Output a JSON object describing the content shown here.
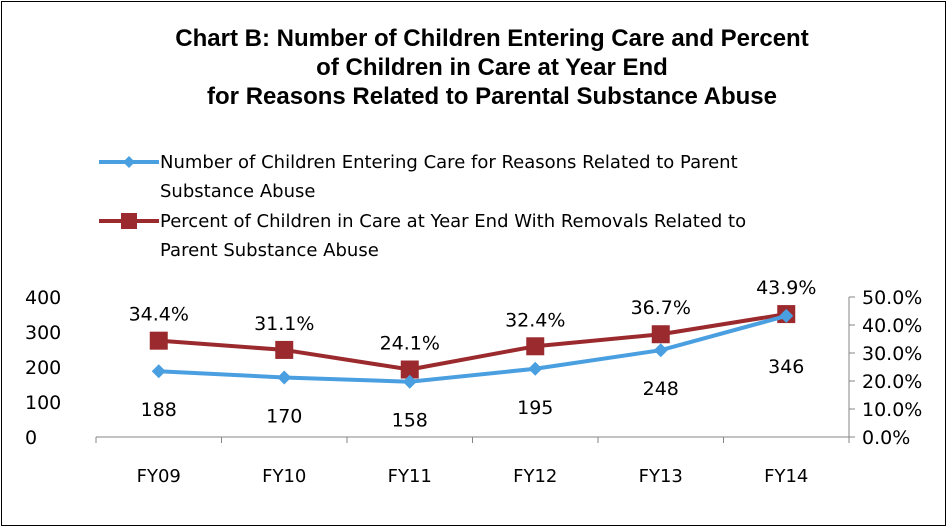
{
  "title_lines": [
    "Chart B: Number of Children Entering Care and Percent",
    "of Children in Care at Year End",
    "for Reasons Related to Parental Substance Abuse"
  ],
  "legend": [
    {
      "line1": "Number of Children Entering Care for Reasons Related to Parent",
      "line2": "Substance Abuse"
    },
    {
      "line1": "Percent of Children in Care at Year End With Removals Related to",
      "line2": "Parent Substance Abuse"
    }
  ],
  "colors": {
    "series1": "#4a9fe0",
    "series2": "#9b2a2e"
  },
  "chart_data": {
    "type": "line",
    "categories": [
      "FY09",
      "FY10",
      "FY11",
      "FY12",
      "FY13",
      "FY14"
    ],
    "series": [
      {
        "name": "Number of Children Entering Care for Reasons Related to Parent Substance Abuse",
        "axis": "left",
        "marker": "diamond",
        "values": [
          188,
          170,
          158,
          195,
          248,
          346
        ],
        "labels": [
          "188",
          "170",
          "158",
          "195",
          "248",
          "346"
        ]
      },
      {
        "name": "Percent of Children in Care at Year End With Removals Related to Parent Substance Abuse",
        "axis": "right",
        "marker": "square",
        "values": [
          34.4,
          31.1,
          24.1,
          32.4,
          36.7,
          43.9
        ],
        "labels": [
          "34.4%",
          "31.1%",
          "24.1%",
          "32.4%",
          "36.7%",
          "43.9%"
        ]
      }
    ],
    "y_left": {
      "min": 0,
      "max": 400,
      "ticks": [
        "0",
        "100",
        "200",
        "300",
        "400"
      ]
    },
    "y_right": {
      "min": 0,
      "max": 50,
      "ticks": [
        "0.0%",
        "10.0%",
        "20.0%",
        "30.0%",
        "40.0%",
        "50.0%"
      ]
    },
    "grid": false,
    "legend_position": "top"
  }
}
